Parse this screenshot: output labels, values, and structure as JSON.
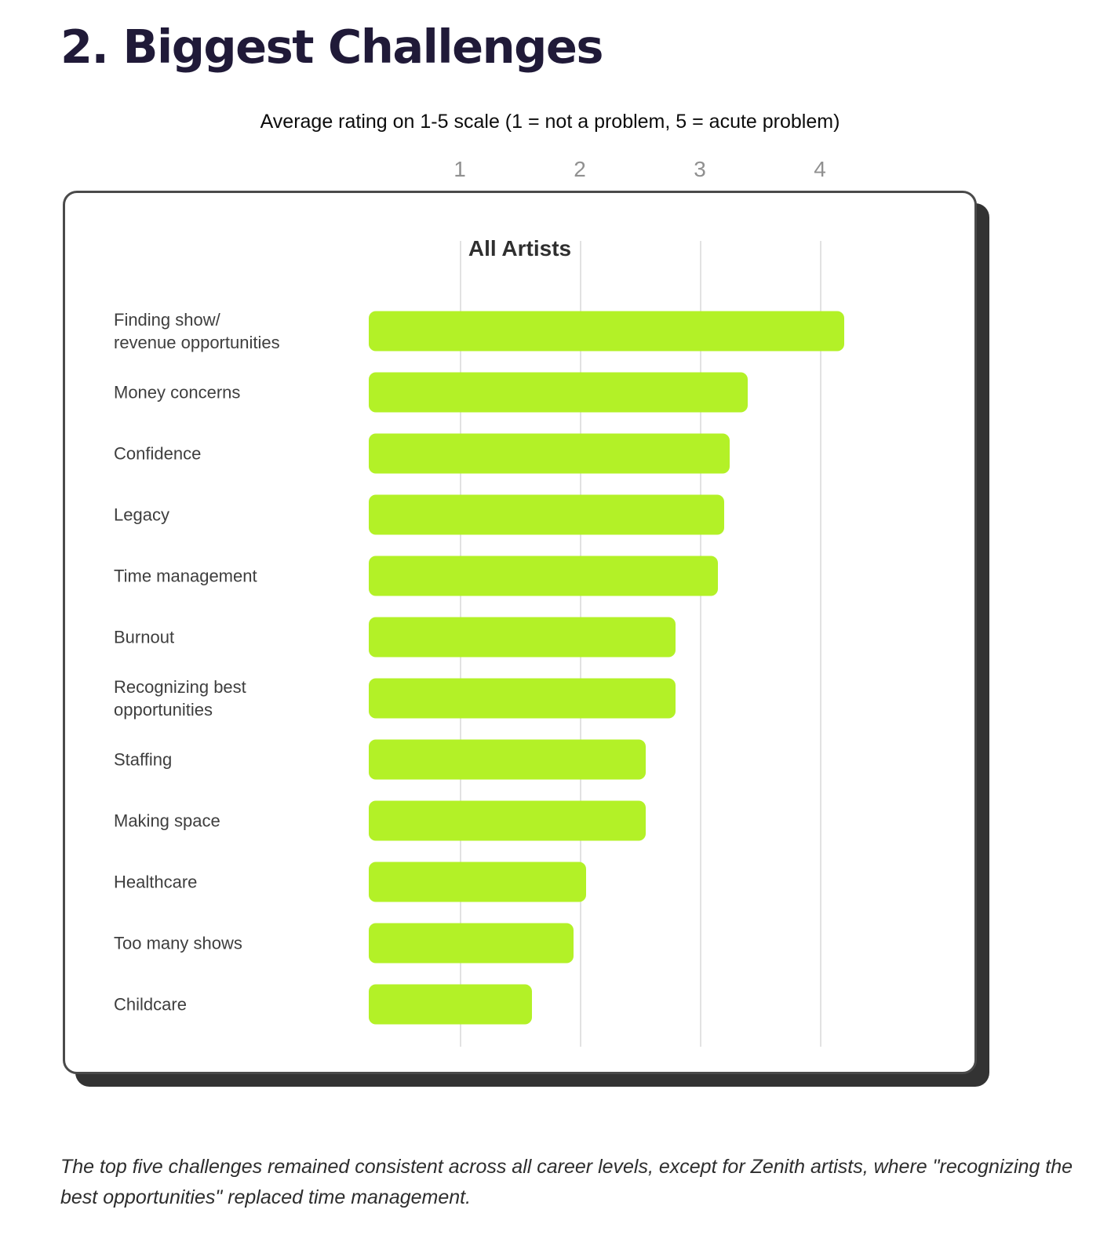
{
  "page": {
    "title": "2. Biggest Challenges",
    "subtitle": "Average rating on 1-5 scale (1 = not a problem, 5 = acute problem)",
    "caption": "The top five challenges remained consistent across all career levels, except for Zenith artists, where \"recognizing the best opportunities\" replaced time management."
  },
  "chart_data": {
    "type": "bar",
    "orientation": "horizontal",
    "title": "Average rating on 1-5 scale (1 = not a problem, 5 = acute problem)",
    "panel_title": "All Artists",
    "categories": [
      "Finding show/revenue opportunities",
      "Money concerns",
      "Confidence",
      "Legacy",
      "Time management",
      "Burnout",
      "Recognizing best opportunities",
      "Staffing",
      "Making space",
      "Healthcare",
      "Too many shows",
      "Childcare"
    ],
    "category_lines": [
      [
        "Finding show/",
        "revenue opportunities"
      ],
      [
        "Money concerns"
      ],
      [
        "Confidence"
      ],
      [
        "Legacy"
      ],
      [
        "Time management"
      ],
      [
        "Burnout"
      ],
      [
        "Recognizing best",
        "opportunities"
      ],
      [
        "Staffing"
      ],
      [
        "Making space"
      ],
      [
        "Healthcare"
      ],
      [
        "Too many shows"
      ],
      [
        "Childcare"
      ]
    ],
    "values": [
      4.2,
      3.4,
      3.25,
      3.2,
      3.15,
      2.8,
      2.8,
      2.55,
      2.55,
      2.05,
      1.95,
      1.6
    ],
    "xlabel": "",
    "ylabel": "",
    "xlim": [
      0,
      5
    ],
    "x_ticks": [
      1,
      2,
      3,
      4
    ],
    "grid": true,
    "legend": "none",
    "colors": {
      "bar": "#b3f127",
      "grid": "#e2e2e2",
      "tick_label": "#909090",
      "card_border": "#4a4a4a",
      "card_shadow": "#333333",
      "title_text": "#201a38"
    }
  }
}
